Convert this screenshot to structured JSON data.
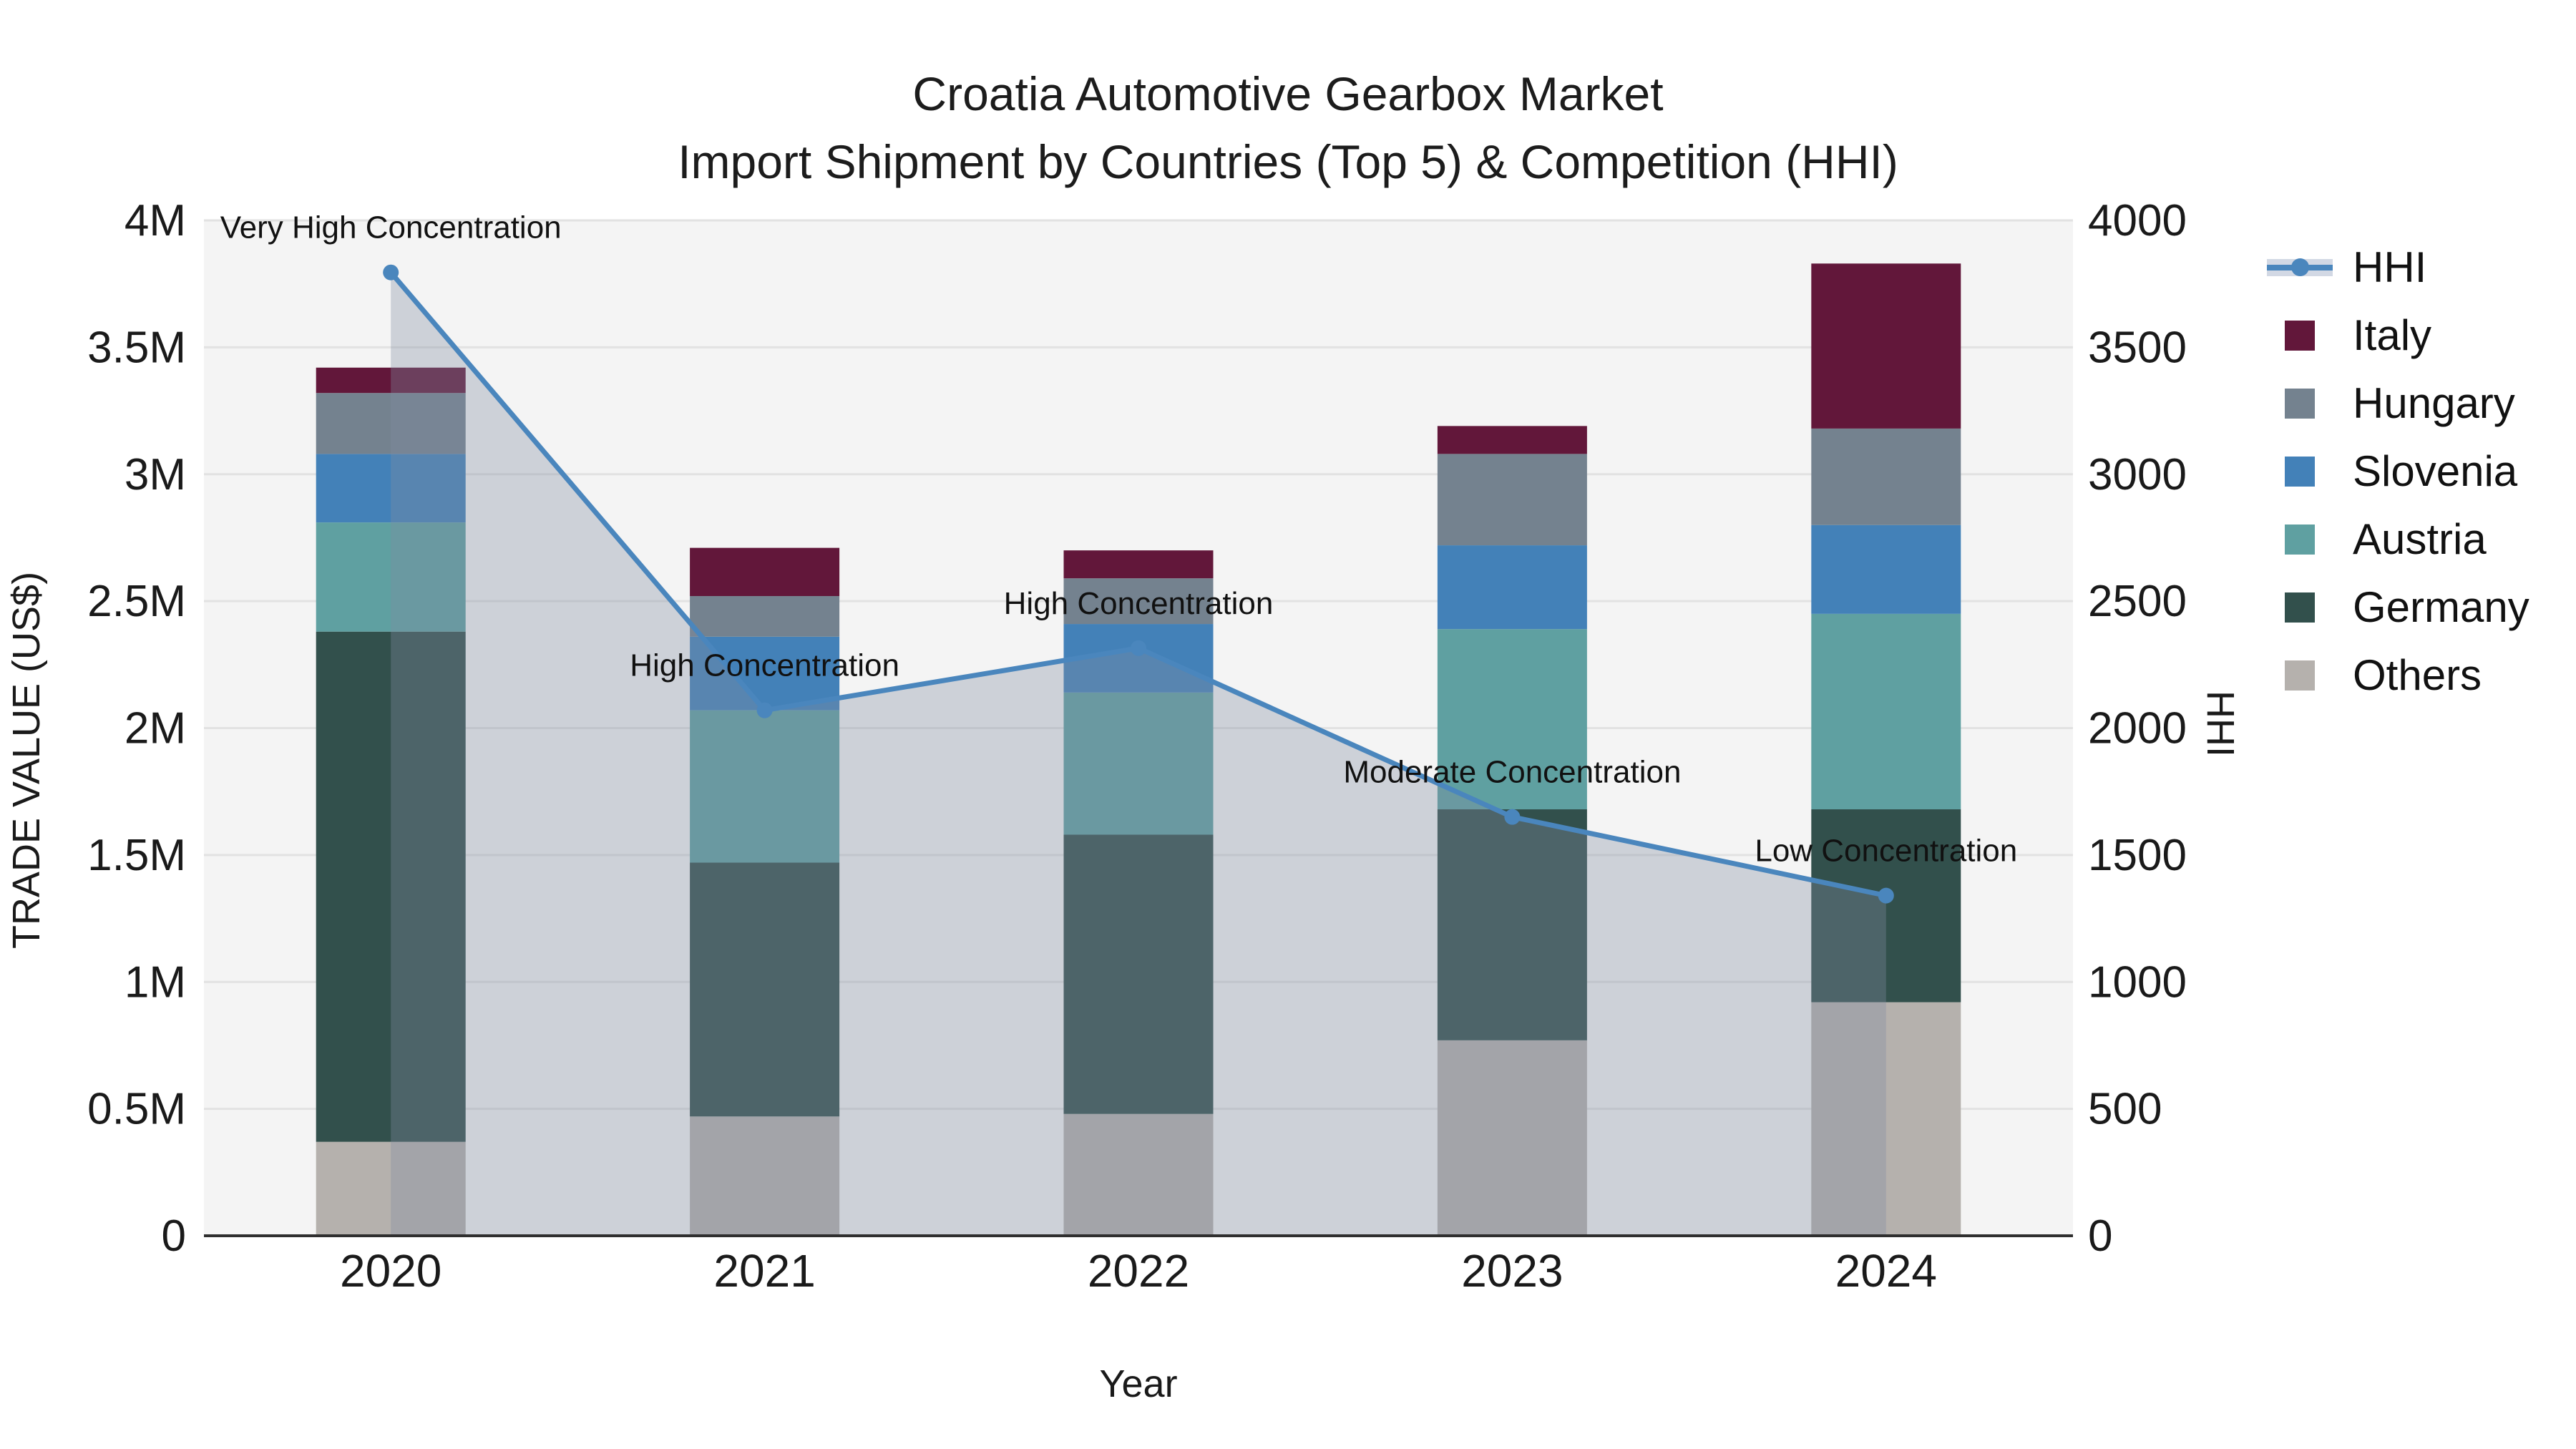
{
  "title": {
    "line1": "Croatia Automotive Gearbox Market",
    "line2": "Import Shipment by Countries (Top 5) & Competition (HHI)"
  },
  "colors": {
    "figure_background": "#ffffff",
    "plot_background": "#f4f4f4",
    "gridline": "#e2e2e2",
    "axis_spine": "#2f2f2f",
    "tick_text": "#1a1a1a",
    "annotation_text": "#111111",
    "hhi_line": "#4a86bd",
    "hhi_area_fill": "rgba(128,140,162,0.34)"
  },
  "chart_data": {
    "type": "bar",
    "subtype": "stacked-bars-with-line-overlay",
    "categories": [
      "2020",
      "2021",
      "2022",
      "2023",
      "2024"
    ],
    "stack_order_note": "series listed bottom-to-top of the stack; values in millions US$",
    "series": [
      {
        "name": "Others",
        "color": "#b5b1ad",
        "values": [
          0.37,
          0.47,
          0.48,
          0.77,
          0.92
        ]
      },
      {
        "name": "Germany",
        "color": "#32504c",
        "values": [
          2.01,
          1.0,
          1.1,
          0.91,
          0.76
        ]
      },
      {
        "name": "Austria",
        "color": "#5fa0a1",
        "values": [
          0.43,
          0.6,
          0.56,
          0.71,
          0.77
        ]
      },
      {
        "name": "Slovenia",
        "color": "#4381b8",
        "values": [
          0.27,
          0.29,
          0.27,
          0.33,
          0.35
        ]
      },
      {
        "name": "Hungary",
        "color": "#74828f",
        "values": [
          0.24,
          0.16,
          0.18,
          0.36,
          0.38
        ]
      },
      {
        "name": "Italy",
        "color": "#62173a",
        "values": [
          0.1,
          0.19,
          0.11,
          0.11,
          0.65
        ]
      }
    ],
    "totals": [
      3.42,
      2.71,
      2.7,
      3.19,
      3.83
    ],
    "line_series": {
      "name": "HHI",
      "color": "#4a86bd",
      "values": [
        3795,
        2070,
        2315,
        1650,
        1340
      ],
      "axis": "right",
      "area_fill": "rgba(128,140,162,0.34)"
    },
    "annotations": [
      "Very High Concentration",
      "High Concentration",
      "High Concentration",
      "Moderate Concentration",
      "Low Concentration"
    ],
    "y_left": {
      "label": "TRADE VALUE (US$)",
      "ticks": [
        "0",
        "0.5M",
        "1M",
        "1.5M",
        "2M",
        "2.5M",
        "3M",
        "3.5M",
        "4M"
      ],
      "tick_values": [
        0,
        0.5,
        1,
        1.5,
        2,
        2.5,
        3,
        3.5,
        4
      ],
      "min": 0,
      "max": 4
    },
    "y_right": {
      "label": "HHI",
      "ticks": [
        "0",
        "500",
        "1000",
        "1500",
        "2000",
        "2500",
        "3000",
        "3500",
        "4000"
      ],
      "tick_values": [
        0,
        500,
        1000,
        1500,
        2000,
        2500,
        3000,
        3500,
        4000
      ],
      "min": 0,
      "max": 4000
    },
    "x_axis": {
      "label": "Year"
    },
    "grid": "horizontal",
    "legend_position": "outside-right",
    "legend": [
      {
        "label": "HHI",
        "type": "line",
        "color": "#4a86bd"
      },
      {
        "label": "Italy",
        "type": "square",
        "color": "#62173a"
      },
      {
        "label": "Hungary",
        "type": "square",
        "color": "#74828f"
      },
      {
        "label": "Slovenia",
        "type": "square",
        "color": "#4381b8"
      },
      {
        "label": "Austria",
        "type": "square",
        "color": "#5fa0a1"
      },
      {
        "label": "Germany",
        "type": "square",
        "color": "#32504c"
      },
      {
        "label": "Others",
        "type": "square",
        "color": "#b5b1ad"
      }
    ]
  }
}
